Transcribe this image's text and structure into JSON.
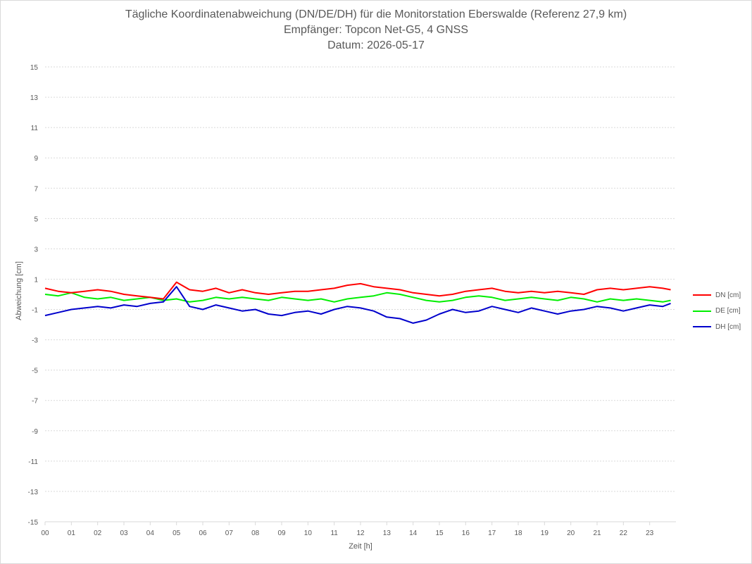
{
  "chart_data": {
    "type": "line",
    "title": "Tägliche Koordinatenabweichung (DN/DE/DH) für die Monitorstation Eberswalde (Referenz 27,9 km)",
    "subtitle": "Empfänger: Topcon Net-G5, 4 GNSS",
    "date_line": "Datum: 2026-05-17",
    "xlabel": "Zeit [h]",
    "ylabel": "Abweichung [cm]",
    "xlim": [
      0,
      24
    ],
    "ylim": [
      -15,
      15
    ],
    "x_ticks": [
      "00",
      "01",
      "02",
      "03",
      "04",
      "05",
      "06",
      "07",
      "08",
      "09",
      "10",
      "11",
      "12",
      "13",
      "14",
      "15",
      "16",
      "17",
      "18",
      "19",
      "20",
      "21",
      "22",
      "23"
    ],
    "y_ticks": [
      15,
      13,
      11,
      9,
      7,
      5,
      3,
      1,
      -1,
      -3,
      -5,
      -7,
      -9,
      -11,
      -13,
      -15
    ],
    "grid": "horizontal dotted",
    "legend_position": "right",
    "x": [
      0,
      0.5,
      1,
      1.5,
      2,
      2.5,
      3,
      3.5,
      4,
      4.5,
      5,
      5.5,
      6,
      6.5,
      7,
      7.5,
      8,
      8.5,
      9,
      9.5,
      10,
      10.5,
      11,
      11.5,
      12,
      12.5,
      13,
      13.5,
      14,
      14.5,
      15,
      15.5,
      16,
      16.5,
      17,
      17.5,
      18,
      18.5,
      19,
      19.5,
      20,
      20.5,
      21,
      21.5,
      22,
      22.5,
      23,
      23.5,
      23.8
    ],
    "series": [
      {
        "name": "DN [cm]",
        "color": "#ff0000",
        "values": [
          0.4,
          0.2,
          0.1,
          0.2,
          0.3,
          0.2,
          0.0,
          -0.1,
          -0.2,
          -0.3,
          0.8,
          0.3,
          0.2,
          0.4,
          0.1,
          0.3,
          0.1,
          0.0,
          0.1,
          0.2,
          0.2,
          0.3,
          0.4,
          0.6,
          0.7,
          0.5,
          0.4,
          0.3,
          0.1,
          0.0,
          -0.1,
          0.0,
          0.2,
          0.3,
          0.4,
          0.2,
          0.1,
          0.2,
          0.1,
          0.2,
          0.1,
          0.0,
          0.3,
          0.4,
          0.3,
          0.4,
          0.5,
          0.4,
          0.3
        ]
      },
      {
        "name": "DE [cm]",
        "color": "#00ee00",
        "values": [
          0.0,
          -0.1,
          0.1,
          -0.2,
          -0.3,
          -0.2,
          -0.4,
          -0.3,
          -0.2,
          -0.4,
          -0.3,
          -0.5,
          -0.4,
          -0.2,
          -0.3,
          -0.2,
          -0.3,
          -0.4,
          -0.2,
          -0.3,
          -0.4,
          -0.3,
          -0.5,
          -0.3,
          -0.2,
          -0.1,
          0.1,
          0.0,
          -0.2,
          -0.4,
          -0.5,
          -0.4,
          -0.2,
          -0.1,
          -0.2,
          -0.4,
          -0.3,
          -0.2,
          -0.3,
          -0.4,
          -0.2,
          -0.3,
          -0.5,
          -0.3,
          -0.4,
          -0.3,
          -0.4,
          -0.5,
          -0.4
        ]
      },
      {
        "name": "DH [cm]",
        "color": "#0000cc",
        "values": [
          -1.4,
          -1.2,
          -1.0,
          -0.9,
          -0.8,
          -0.9,
          -0.7,
          -0.8,
          -0.6,
          -0.5,
          0.5,
          -0.8,
          -1.0,
          -0.7,
          -0.9,
          -1.1,
          -1.0,
          -1.3,
          -1.4,
          -1.2,
          -1.1,
          -1.3,
          -1.0,
          -0.8,
          -0.9,
          -1.1,
          -1.5,
          -1.6,
          -1.9,
          -1.7,
          -1.3,
          -1.0,
          -1.2,
          -1.1,
          -0.8,
          -1.0,
          -1.2,
          -0.9,
          -1.1,
          -1.3,
          -1.1,
          -1.0,
          -0.8,
          -0.9,
          -1.1,
          -0.9,
          -0.7,
          -0.8,
          -0.6
        ]
      }
    ]
  }
}
